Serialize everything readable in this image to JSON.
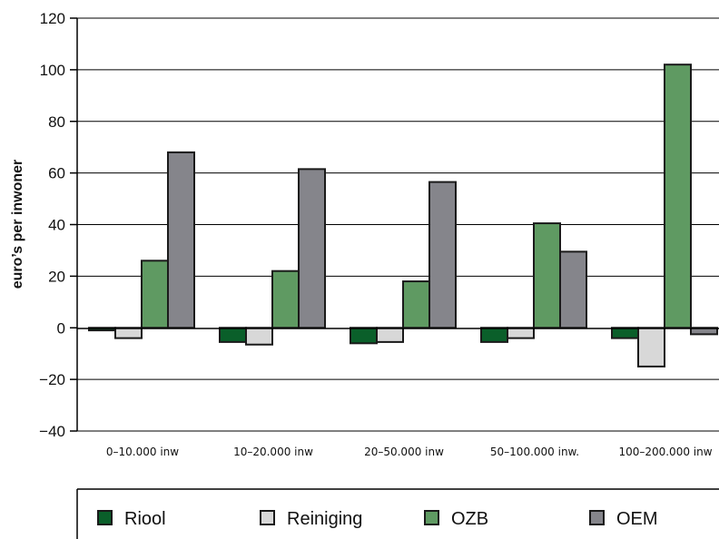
{
  "chart_data": {
    "type": "bar",
    "ylabel": "euro’s per inwoner",
    "ylim": [
      -40,
      120
    ],
    "yticks": [
      -40,
      -20,
      0,
      20,
      40,
      60,
      80,
      100,
      120
    ],
    "ytick_labels": [
      "−40",
      "−20",
      "0",
      "20",
      "40",
      "60",
      "80",
      "100",
      "120"
    ],
    "grid": true,
    "categories": [
      "0–10.000 inw",
      "10–20.000 inw",
      "20–50.000 inw",
      "50–100.000 inw.",
      "100–200.000 inw"
    ],
    "series": [
      {
        "name": "Riool",
        "color": "#0a5f2a",
        "values": [
          -1,
          -5.5,
          -6,
          -5.5,
          -4
        ]
      },
      {
        "name": "Reiniging",
        "color": "#d8d8d8",
        "values": [
          -4,
          -6.5,
          -5.5,
          -4,
          -15
        ]
      },
      {
        "name": "OZB",
        "color": "#5f9a62",
        "values": [
          26,
          22,
          18,
          40.5,
          102
        ]
      },
      {
        "name": "OEM",
        "color": "#85858b",
        "values": [
          68,
          61.5,
          56.5,
          29.5,
          -2.5
        ]
      }
    ],
    "legend_position": "bottom"
  }
}
